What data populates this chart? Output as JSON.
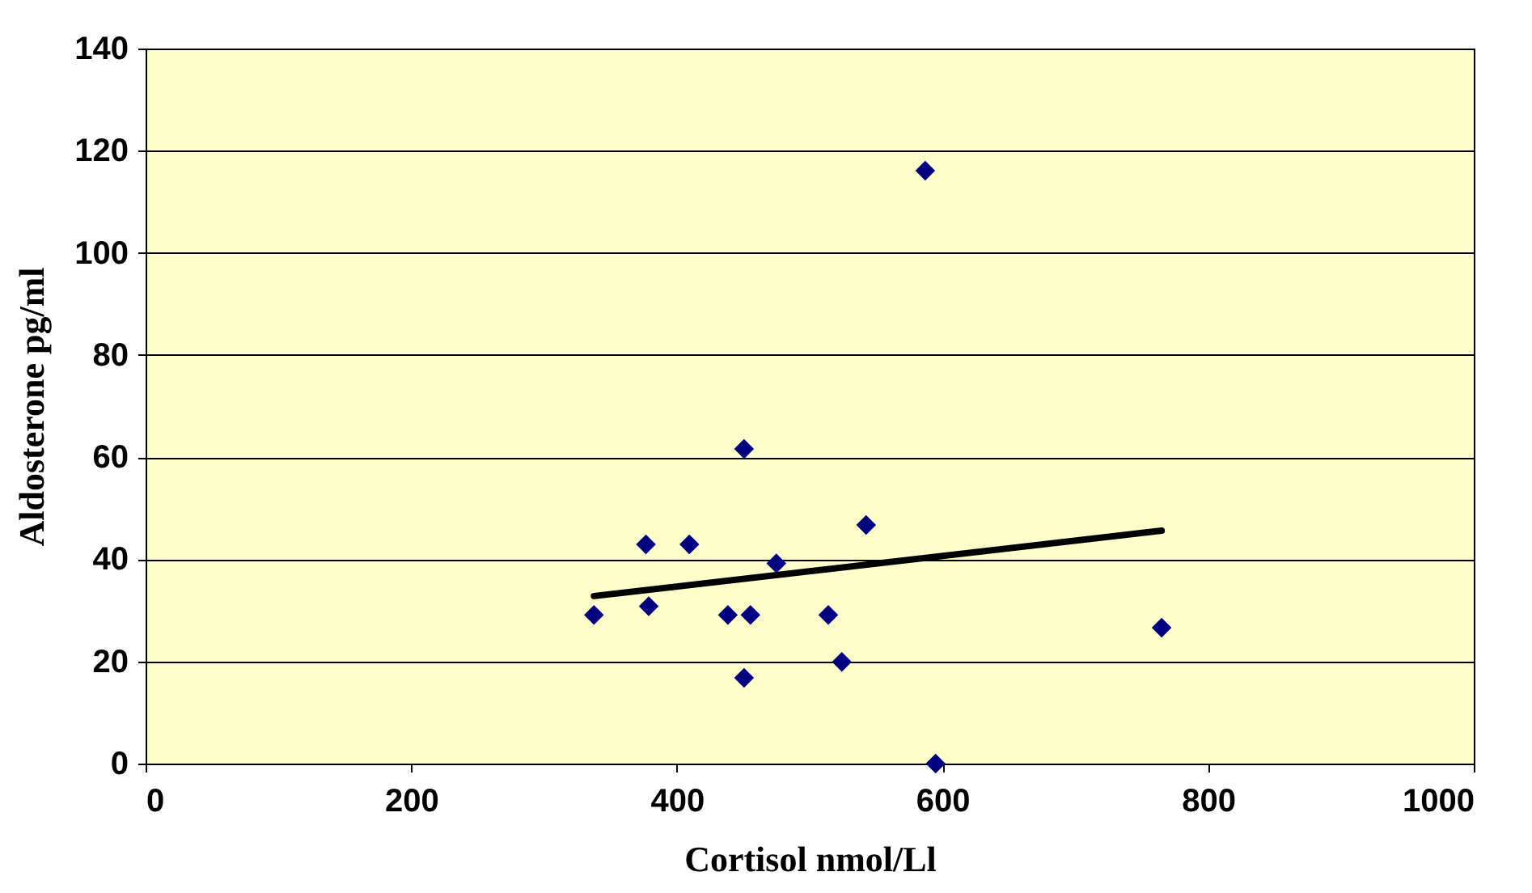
{
  "chart_data": {
    "type": "scatter",
    "xlabel": "Cortisol nmol/Ll",
    "ylabel": "Aldosterone pg/ml",
    "xlim": [
      0,
      1000
    ],
    "xticks": [
      0,
      200,
      400,
      600,
      800,
      1000
    ],
    "ylim": [
      0,
      140
    ],
    "yticks": [
      0,
      20,
      40,
      60,
      80,
      100,
      120,
      140
    ],
    "grid": "y",
    "series": [
      {
        "color": "#000080",
        "marker": "diamond",
        "x": [
          337.6,
          376.7,
          378.8,
          409.4,
          438.4,
          455.4,
          450.6,
          450.6,
          474.9,
          514,
          524.2,
          542.5,
          587,
          594.8,
          765
        ],
        "values": [
          29.1,
          42.9,
          30.8,
          42.9,
          29.1,
          29.1,
          16.8,
          61.6,
          39.2,
          29.1,
          19.9,
          46.7,
          116.1,
          0,
          26.6
        ]
      },
      {
        "type": "line",
        "marker": "none",
        "color": "#000000",
        "x": [
          337.6,
          765
        ],
        "values": [
          32.8,
          45.6
        ]
      }
    ]
  }
}
